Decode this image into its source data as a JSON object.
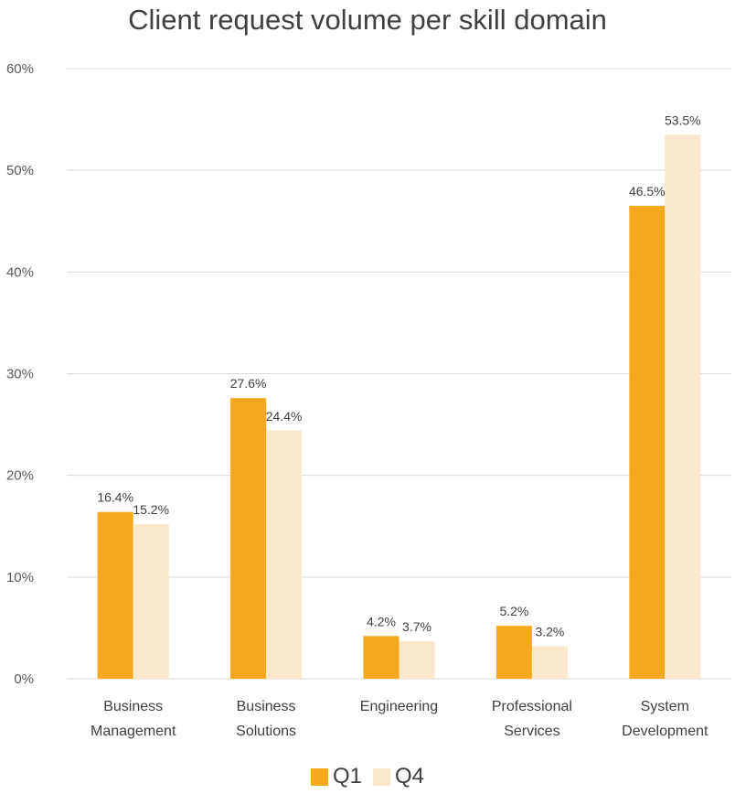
{
  "chart_data": {
    "type": "bar",
    "title": "Client request volume per skill domain",
    "categories": [
      [
        "Business",
        "Management"
      ],
      [
        "Business",
        "Solutions"
      ],
      [
        "Engineering"
      ],
      [
        "Professional",
        "Services"
      ],
      [
        "System",
        "Development"
      ]
    ],
    "series": [
      {
        "name": "Q1",
        "color": "#F5A81C",
        "values": [
          16.4,
          27.6,
          4.2,
          5.2,
          46.5
        ],
        "labels": [
          "16.4%",
          "27.6%",
          "4.2%",
          "5.2%",
          "46.5%"
        ]
      },
      {
        "name": "Q4",
        "color": "#FAE8CD",
        "values": [
          15.2,
          24.4,
          3.7,
          3.2,
          53.5
        ],
        "labels": [
          "15.2%",
          "24.4%",
          "3.7%",
          "3.2%",
          "53.5%"
        ]
      }
    ],
    "ylim": [
      0,
      60
    ],
    "yticks": [
      0,
      10,
      20,
      30,
      40,
      50,
      60
    ],
    "ytick_labels": [
      "0%",
      "10%",
      "20%",
      "30%",
      "40%",
      "50%",
      "60%"
    ],
    "xlabel": "",
    "ylabel": "",
    "grid": true,
    "gridline_color": "#D9D9D9",
    "legend_position": "bottom"
  }
}
